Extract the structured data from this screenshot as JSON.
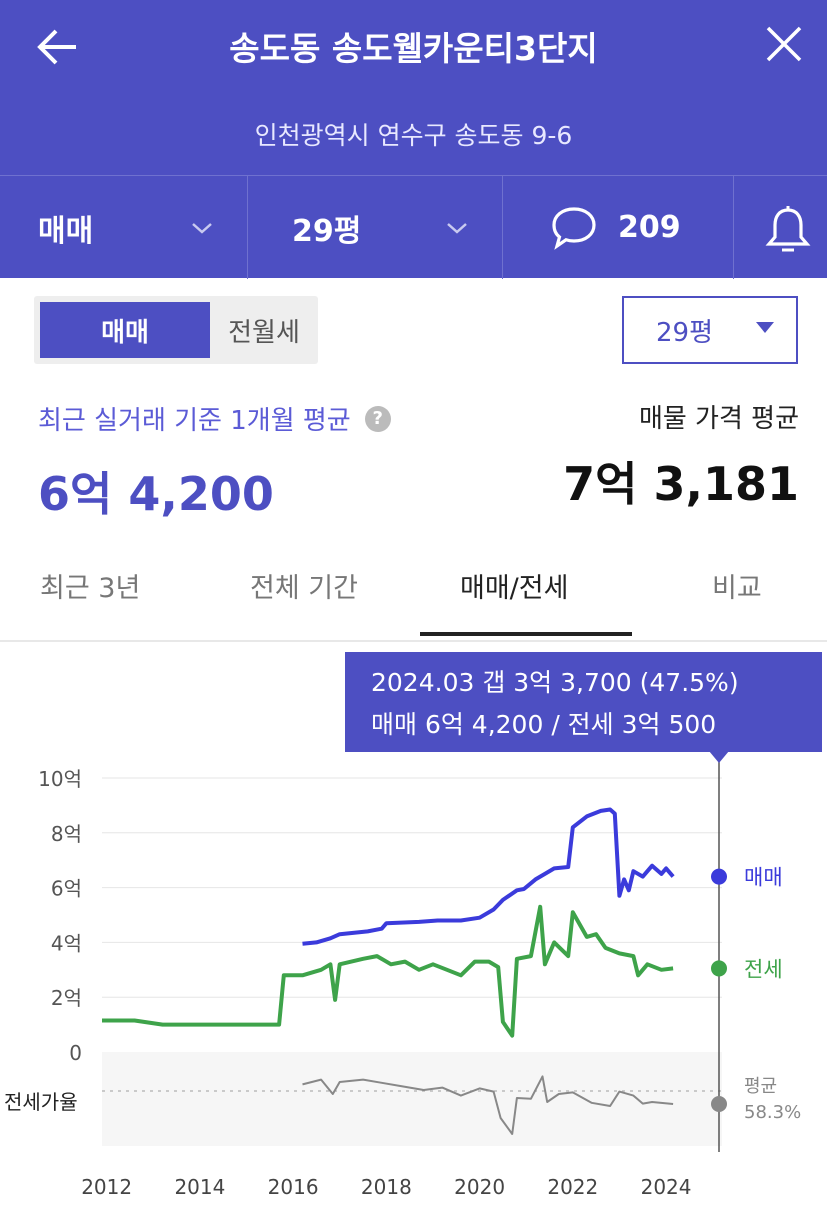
{
  "header": {
    "title": "송도동 송도웰카운티3단지",
    "address": "인천광역시 연수구 송도동 9-6",
    "trade_type": "매매",
    "area": "29평",
    "comment_count": "209"
  },
  "toggle": {
    "active": "매매",
    "inactive": "전월세"
  },
  "area_select": {
    "value": "29평"
  },
  "summary": {
    "recent_label": "최근 실거래 기준 1개월 평균",
    "help_icon": "?",
    "recent_value": "6억 4,200",
    "listing_label": "매물 가격 평균",
    "listing_value": "7억 3,181"
  },
  "tabs": [
    {
      "label": "최근 3년"
    },
    {
      "label": "전체 기간"
    },
    {
      "label": "매매/전세",
      "active": true
    },
    {
      "label": "비교"
    }
  ],
  "tooltip": {
    "line1": "2024.03  갭 3억 3,700 (47.5%)",
    "line2": "매매 6억 4,200 / 전세 3억 500"
  },
  "chart_data": {
    "type": "line",
    "y_ticks": [
      "10억",
      "8억",
      "6억",
      "4억",
      "2억",
      "0"
    ],
    "ylim": [
      0,
      10
    ],
    "x_ticks": [
      "2012",
      "2014",
      "2016",
      "2018",
      "2020",
      "2022",
      "2024"
    ],
    "xlim": [
      2011.9,
      2025.2
    ],
    "series": [
      {
        "name": "매매",
        "color": "#3b3bdb",
        "points": [
          [
            2016.2,
            3.95
          ],
          [
            2016.5,
            4.0
          ],
          [
            2016.8,
            4.15
          ],
          [
            2017.0,
            4.3
          ],
          [
            2017.6,
            4.4
          ],
          [
            2017.9,
            4.5
          ],
          [
            2018.0,
            4.7
          ],
          [
            2018.7,
            4.75
          ],
          [
            2019.1,
            4.8
          ],
          [
            2019.6,
            4.8
          ],
          [
            2020.0,
            4.9
          ],
          [
            2020.3,
            5.2
          ],
          [
            2020.5,
            5.55
          ],
          [
            2020.8,
            5.9
          ],
          [
            2020.95,
            5.95
          ],
          [
            2021.2,
            6.3
          ],
          [
            2021.4,
            6.5
          ],
          [
            2021.6,
            6.7
          ],
          [
            2021.9,
            6.75
          ],
          [
            2022.0,
            8.2
          ],
          [
            2022.3,
            8.6
          ],
          [
            2022.6,
            8.8
          ],
          [
            2022.8,
            8.85
          ],
          [
            2022.9,
            8.7
          ],
          [
            2023.0,
            5.7
          ],
          [
            2023.1,
            6.3
          ],
          [
            2023.2,
            5.9
          ],
          [
            2023.3,
            6.6
          ],
          [
            2023.5,
            6.4
          ],
          [
            2023.7,
            6.8
          ],
          [
            2023.9,
            6.5
          ],
          [
            2024.0,
            6.7
          ],
          [
            2024.15,
            6.4
          ]
        ],
        "end_value": 6.42,
        "label": "매매"
      },
      {
        "name": "전세",
        "color": "#3ea34a",
        "points": [
          [
            2011.9,
            1.15
          ],
          [
            2012.6,
            1.15
          ],
          [
            2013.2,
            1.0
          ],
          [
            2014.5,
            1.0
          ],
          [
            2015.7,
            1.0
          ],
          [
            2015.8,
            2.8
          ],
          [
            2016.2,
            2.8
          ],
          [
            2016.6,
            3.0
          ],
          [
            2016.8,
            3.2
          ],
          [
            2016.9,
            1.9
          ],
          [
            2017.0,
            3.2
          ],
          [
            2017.5,
            3.4
          ],
          [
            2017.8,
            3.5
          ],
          [
            2018.1,
            3.2
          ],
          [
            2018.4,
            3.3
          ],
          [
            2018.7,
            3.0
          ],
          [
            2019.0,
            3.2
          ],
          [
            2019.3,
            3.0
          ],
          [
            2019.6,
            2.8
          ],
          [
            2019.9,
            3.3
          ],
          [
            2020.2,
            3.3
          ],
          [
            2020.4,
            3.1
          ],
          [
            2020.5,
            1.1
          ],
          [
            2020.7,
            0.6
          ],
          [
            2020.8,
            3.4
          ],
          [
            2021.1,
            3.5
          ],
          [
            2021.3,
            5.3
          ],
          [
            2021.4,
            3.2
          ],
          [
            2021.6,
            4.0
          ],
          [
            2021.9,
            3.5
          ],
          [
            2022.0,
            5.1
          ],
          [
            2022.3,
            4.2
          ],
          [
            2022.5,
            4.3
          ],
          [
            2022.7,
            3.8
          ],
          [
            2023.0,
            3.6
          ],
          [
            2023.3,
            3.5
          ],
          [
            2023.4,
            2.8
          ],
          [
            2023.6,
            3.2
          ],
          [
            2023.9,
            3.0
          ],
          [
            2024.15,
            3.05
          ]
        ],
        "end_value": 3.05,
        "label": "전세"
      },
      {
        "name": "전세가율",
        "color": "#888888",
        "points": [
          [
            2016.2,
            0.72
          ],
          [
            2016.6,
            0.78
          ],
          [
            2016.85,
            0.6
          ],
          [
            2017.0,
            0.75
          ],
          [
            2017.5,
            0.78
          ],
          [
            2017.9,
            0.74
          ],
          [
            2018.3,
            0.7
          ],
          [
            2018.8,
            0.65
          ],
          [
            2019.2,
            0.68
          ],
          [
            2019.6,
            0.58
          ],
          [
            2020.0,
            0.67
          ],
          [
            2020.3,
            0.63
          ],
          [
            2020.45,
            0.3
          ],
          [
            2020.7,
            0.1
          ],
          [
            2020.8,
            0.55
          ],
          [
            2021.1,
            0.54
          ],
          [
            2021.35,
            0.82
          ],
          [
            2021.45,
            0.5
          ],
          [
            2021.7,
            0.6
          ],
          [
            2022.0,
            0.62
          ],
          [
            2022.4,
            0.49
          ],
          [
            2022.8,
            0.45
          ],
          [
            2023.0,
            0.63
          ],
          [
            2023.3,
            0.58
          ],
          [
            2023.5,
            0.48
          ],
          [
            2023.7,
            0.5
          ],
          [
            2024.15,
            0.475
          ]
        ],
        "end_label": "평균",
        "end_value_label": "58.3%",
        "label": "전세가율"
      }
    ]
  }
}
